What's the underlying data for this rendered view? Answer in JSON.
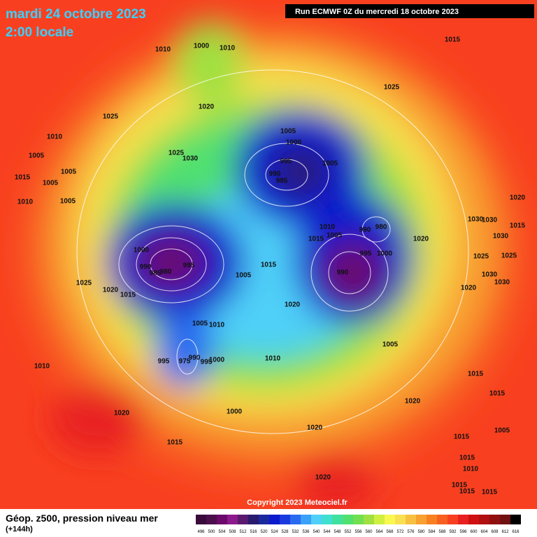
{
  "header": {
    "title": "mardi 24 octobre 2023",
    "subtitle": "2:00 locale",
    "run": "Run ECMWF 0Z du mercredi 18 octobre 2023"
  },
  "copyright": "Copyright 2023 Meteociel.fr",
  "legend": {
    "title": "Géop. z500, pression niveau mer",
    "lead": "(+144h)",
    "values": [
      496,
      500,
      504,
      508,
      512,
      516,
      520,
      524,
      528,
      532,
      536,
      540,
      544,
      548,
      552,
      556,
      560,
      564,
      568,
      572,
      576,
      580,
      584,
      588,
      592,
      596,
      600,
      604,
      608,
      612,
      616
    ],
    "colors": [
      "#3a0a3a",
      "#4b0f4b",
      "#6b0a6b",
      "#8c1a8c",
      "#5a1a6e",
      "#2a1a6e",
      "#1a2a9e",
      "#0a1acc",
      "#1a3ae0",
      "#2a6af0",
      "#3aa0f8",
      "#50d0f8",
      "#40e0d0",
      "#40e0a0",
      "#50e070",
      "#70e050",
      "#a0e040",
      "#d0f040",
      "#f8f850",
      "#f8e050",
      "#f8c040",
      "#f8a030",
      "#f88020",
      "#f86020",
      "#f84020",
      "#e82020",
      "#d01010",
      "#b01010",
      "#901010",
      "#701010",
      "#000000"
    ]
  },
  "isobar_labels": [
    1015,
    1010,
    1000,
    1010,
    1025,
    1020,
    1025,
    1010,
    1005,
    1025,
    1030,
    1005,
    1015,
    1005,
    1010,
    1005,
    1005,
    1000,
    995,
    990,
    985,
    1005,
    1020,
    1030,
    1030,
    1015,
    990,
    980,
    1020,
    1030,
    1010,
    1005,
    1015,
    1000,
    995,
    990,
    985,
    980,
    995,
    1000,
    1015,
    1005,
    990,
    1025,
    1025,
    1030,
    1030,
    1025,
    1020,
    1015,
    1020,
    1020,
    1005,
    1010,
    1005,
    1010,
    995,
    975,
    990,
    995,
    1000,
    1010,
    1015,
    1015,
    1020,
    1020,
    1000,
    1020,
    1005,
    1015,
    1015,
    1015,
    1010,
    1020,
    1015,
    1015,
    1015
  ]
}
